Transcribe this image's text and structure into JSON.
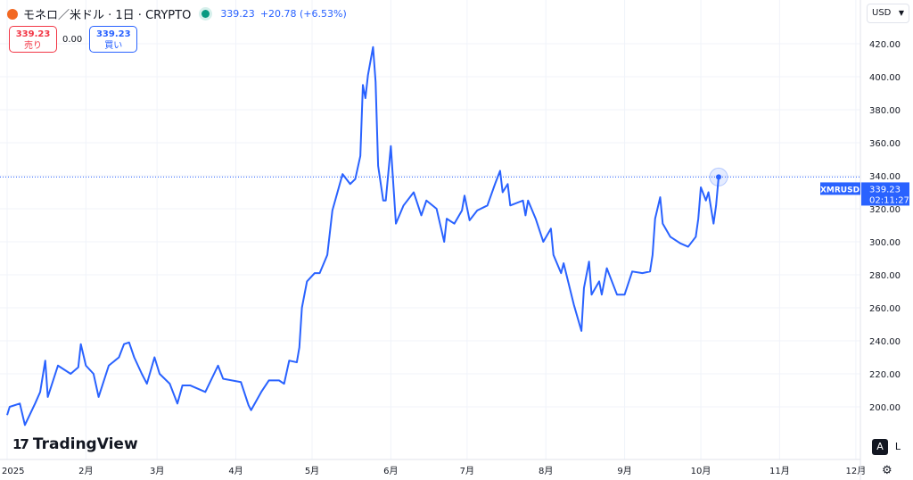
{
  "header": {
    "symbol_title": "モネロ／米ドル · 1日 · CRYPTO",
    "last_price": "339.23",
    "change": "+20.78 (+6.53%)",
    "status_color": "#089981"
  },
  "trade": {
    "sell_price": "339.23",
    "sell_label": "売り",
    "spread": "0.00",
    "buy_price": "339.23",
    "buy_label": "買い"
  },
  "currency": {
    "selected": "USD"
  },
  "price_tag": {
    "symbol": "XMRUSD",
    "price": "339.23",
    "countdown": "02:11:27"
  },
  "brand": "TradingView",
  "scale_buttons": {
    "auto": "A",
    "log": "L"
  },
  "icons": {
    "settings": "gear-icon",
    "currency": "chevron-down-icon"
  },
  "colors": {
    "line": "#2962ff",
    "sell": "#f23645",
    "buy": "#2962ff"
  },
  "chart_data": {
    "type": "line",
    "yticks": [
      "200.00",
      "220.00",
      "240.00",
      "260.00",
      "280.00",
      "300.00",
      "320.00",
      "340.00",
      "360.00",
      "380.00",
      "400.00",
      "420.00"
    ],
    "xticks": [
      {
        "label": "2025",
        "date": "2025-01-01"
      },
      {
        "label": "2月",
        "date": "2025-02-01"
      },
      {
        "label": "3月",
        "date": "2025-03-01"
      },
      {
        "label": "4月",
        "date": "2025-04-01"
      },
      {
        "label": "5月",
        "date": "2025-05-01"
      },
      {
        "label": "6月",
        "date": "2025-06-01"
      },
      {
        "label": "7月",
        "date": "2025-07-01"
      },
      {
        "label": "8月",
        "date": "2025-08-01"
      },
      {
        "label": "9月",
        "date": "2025-09-01"
      },
      {
        "label": "10月",
        "date": "2025-10-01"
      },
      {
        "label": "11月",
        "date": "2025-11-01"
      },
      {
        "label": "12月",
        "date": "2025-12-01"
      }
    ],
    "grid": true,
    "points": [
      [
        "2025-01-01",
        195
      ],
      [
        "2025-01-02",
        200
      ],
      [
        "2025-01-06",
        202
      ],
      [
        "2025-01-08",
        189
      ],
      [
        "2025-01-12",
        202
      ],
      [
        "2025-01-14",
        209
      ],
      [
        "2025-01-16",
        228
      ],
      [
        "2025-01-17",
        206
      ],
      [
        "2025-01-21",
        225
      ],
      [
        "2025-01-26",
        220
      ],
      [
        "2025-01-29",
        224
      ],
      [
        "2025-01-30",
        238
      ],
      [
        "2025-02-01",
        225
      ],
      [
        "2025-02-04",
        220
      ],
      [
        "2025-02-06",
        206
      ],
      [
        "2025-02-10",
        225
      ],
      [
        "2025-02-14",
        230
      ],
      [
        "2025-02-16",
        238
      ],
      [
        "2025-02-18",
        239
      ],
      [
        "2025-02-20",
        230
      ],
      [
        "2025-02-23",
        220
      ],
      [
        "2025-02-25",
        214
      ],
      [
        "2025-02-28",
        230
      ],
      [
        "2025-03-02",
        220
      ],
      [
        "2025-03-06",
        214
      ],
      [
        "2025-03-09",
        202
      ],
      [
        "2025-03-11",
        213
      ],
      [
        "2025-03-14",
        213
      ],
      [
        "2025-03-20",
        209
      ],
      [
        "2025-03-25",
        225
      ],
      [
        "2025-03-27",
        217
      ],
      [
        "2025-04-03",
        215
      ],
      [
        "2025-04-06",
        201
      ],
      [
        "2025-04-07",
        198
      ],
      [
        "2025-04-11",
        209
      ],
      [
        "2025-04-14",
        216
      ],
      [
        "2025-04-18",
        216
      ],
      [
        "2025-04-20",
        214
      ],
      [
        "2025-04-22",
        228
      ],
      [
        "2025-04-25",
        227
      ],
      [
        "2025-04-26",
        236
      ],
      [
        "2025-04-27",
        260
      ],
      [
        "2025-04-29",
        276
      ],
      [
        "2025-05-02",
        281
      ],
      [
        "2025-05-04",
        281
      ],
      [
        "2025-05-07",
        292
      ],
      [
        "2025-05-09",
        319
      ],
      [
        "2025-05-11",
        330
      ],
      [
        "2025-05-13",
        341
      ],
      [
        "2025-05-16",
        335
      ],
      [
        "2025-05-18",
        338
      ],
      [
        "2025-05-20",
        352
      ],
      [
        "2025-05-21",
        395
      ],
      [
        "2025-05-22",
        387
      ],
      [
        "2025-05-23",
        401
      ],
      [
        "2025-05-25",
        418
      ],
      [
        "2025-05-26",
        397
      ],
      [
        "2025-05-27",
        346
      ],
      [
        "2025-05-29",
        325
      ],
      [
        "2025-05-30",
        325
      ],
      [
        "2025-06-01",
        358
      ],
      [
        "2025-06-03",
        311
      ],
      [
        "2025-06-06",
        322
      ],
      [
        "2025-06-10",
        330
      ],
      [
        "2025-06-13",
        316
      ],
      [
        "2025-06-15",
        325
      ],
      [
        "2025-06-19",
        320
      ],
      [
        "2025-06-22",
        300
      ],
      [
        "2025-06-23",
        314
      ],
      [
        "2025-06-26",
        311
      ],
      [
        "2025-06-29",
        319
      ],
      [
        "2025-06-30",
        328
      ],
      [
        "2025-07-02",
        313
      ],
      [
        "2025-07-05",
        319
      ],
      [
        "2025-07-09",
        322
      ],
      [
        "2025-07-12",
        335
      ],
      [
        "2025-07-14",
        343
      ],
      [
        "2025-07-15",
        330
      ],
      [
        "2025-07-17",
        335
      ],
      [
        "2025-07-18",
        322
      ],
      [
        "2025-07-23",
        325
      ],
      [
        "2025-07-24",
        316
      ],
      [
        "2025-07-25",
        325
      ],
      [
        "2025-07-28",
        314
      ],
      [
        "2025-07-31",
        300
      ],
      [
        "2025-08-03",
        308
      ],
      [
        "2025-08-04",
        292
      ],
      [
        "2025-08-07",
        281
      ],
      [
        "2025-08-08",
        287
      ],
      [
        "2025-08-12",
        262
      ],
      [
        "2025-08-15",
        246
      ],
      [
        "2025-08-16",
        272
      ],
      [
        "2025-08-18",
        288
      ],
      [
        "2025-08-19",
        268
      ],
      [
        "2025-08-22",
        276
      ],
      [
        "2025-08-23",
        268
      ],
      [
        "2025-08-25",
        284
      ],
      [
        "2025-08-29",
        268
      ],
      [
        "2025-09-01",
        268
      ],
      [
        "2025-09-04",
        282
      ],
      [
        "2025-09-08",
        281
      ],
      [
        "2025-09-11",
        282
      ],
      [
        "2025-09-12",
        292
      ],
      [
        "2025-09-13",
        314
      ],
      [
        "2025-09-15",
        327
      ],
      [
        "2025-09-16",
        311
      ],
      [
        "2025-09-19",
        303
      ],
      [
        "2025-09-23",
        299
      ],
      [
        "2025-09-26",
        297
      ],
      [
        "2025-09-29",
        303
      ],
      [
        "2025-09-30",
        314
      ],
      [
        "2025-10-01",
        333
      ],
      [
        "2025-10-03",
        325
      ],
      [
        "2025-10-04",
        330
      ],
      [
        "2025-10-06",
        311
      ],
      [
        "2025-10-07",
        322
      ],
      [
        "2025-10-08",
        339.23
      ]
    ]
  }
}
